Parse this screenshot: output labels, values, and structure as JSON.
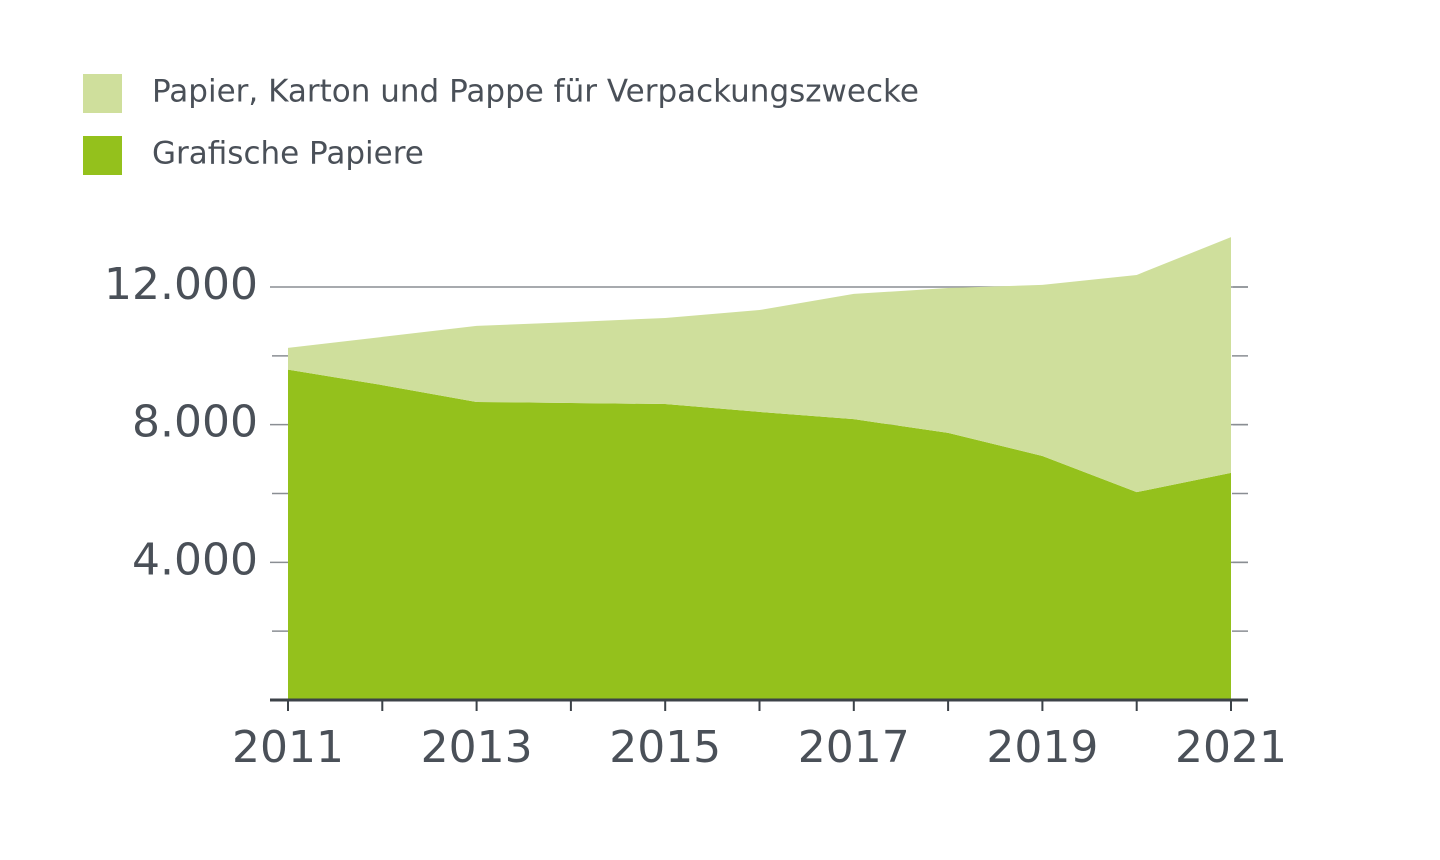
{
  "chart_data": {
    "type": "stacked-area",
    "x": [
      2011,
      2012,
      2013,
      2014,
      2015,
      2016,
      2017,
      2018,
      2019,
      2020,
      2021
    ],
    "xlim": [
      2011,
      2021
    ],
    "xticks": [
      2011,
      2013,
      2015,
      2017,
      2019,
      2021
    ],
    "series": [
      {
        "name": "Papier, Karton und Pappe für Verpackungszwecke",
        "color": "#cfdf9c",
        "values": [
          630,
          1400,
          2210,
          2350,
          2500,
          2960,
          3640,
          4210,
          4970,
          6310,
          6850
        ]
      },
      {
        "name": "Grafische Papiere",
        "color": "#94c11c",
        "values": [
          9600,
          9150,
          8660,
          8630,
          8600,
          8370,
          8160,
          7760,
          7090,
          6040,
          6600
        ]
      }
    ],
    "ylim": [
      0,
      14000
    ],
    "yticks": [
      {
        "value": 4000,
        "label": "4.000"
      },
      {
        "value": 8000,
        "label": "8.000"
      },
      {
        "value": 12000,
        "label": "12.000"
      }
    ],
    "yticks_minor": [
      0,
      2000,
      6000,
      10000
    ],
    "grid": true
  }
}
